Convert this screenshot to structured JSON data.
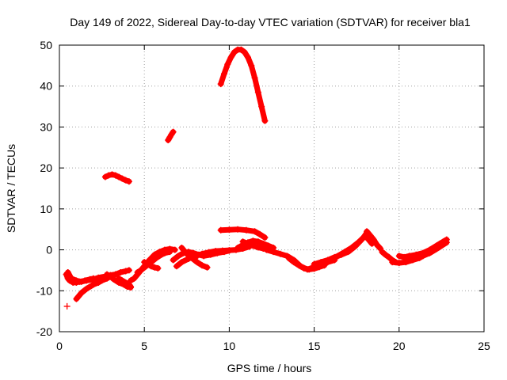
{
  "chart_data": {
    "type": "scatter",
    "title": "Day 149 of 2022, Sidereal Day-to-day VTEC variation (SDTVAR) for receiver bla1",
    "xlabel": "GPS time / hours",
    "ylabel": "SDTVAR / TECUs",
    "xlim": [
      0,
      25
    ],
    "ylim": [
      -20,
      50
    ],
    "xticks": [
      0,
      5,
      10,
      15,
      20,
      25
    ],
    "yticks": [
      -20,
      -10,
      0,
      10,
      20,
      30,
      40,
      50
    ],
    "grid": true,
    "marker": "+",
    "color": "#ff0000",
    "series": [
      {
        "name": "arc-1-low-start",
        "x": [
          0.4,
          0.5,
          0.6,
          0.8,
          1.0,
          1.2,
          1.5,
          1.8,
          2.0
        ],
        "y": [
          -6,
          -7,
          -7.5,
          -8,
          -8,
          -7.8,
          -7.5,
          -7.2,
          -7
        ]
      },
      {
        "name": "arc-2-low",
        "x": [
          0.5,
          0.7,
          1.0,
          1.3,
          1.6,
          2.0,
          2.3,
          2.7,
          3.0,
          3.3
        ],
        "y": [
          -5.5,
          -7,
          -7.5,
          -7.8,
          -7.5,
          -7.2,
          -6.8,
          -6.5,
          -6.2,
          -6
        ]
      },
      {
        "name": "arc-3-low",
        "x": [
          1.0,
          1.3,
          1.6,
          2.0,
          2.3,
          2.5,
          2.8,
          3.0
        ],
        "y": [
          -12,
          -10.5,
          -9.5,
          -8.5,
          -8,
          -7.5,
          -7,
          -6.5
        ]
      },
      {
        "name": "arc-4-low",
        "x": [
          2.8,
          3.0,
          3.2,
          3.5,
          3.8,
          4.0,
          4.2
        ],
        "y": [
          -6,
          -6.5,
          -7.2,
          -8,
          -8.5,
          -9,
          -9.2
        ]
      },
      {
        "name": "arc-5-low",
        "x": [
          3.0,
          3.3,
          3.6,
          3.9,
          4.1
        ],
        "y": [
          -6.5,
          -6,
          -5.5,
          -5.2,
          -5
        ]
      },
      {
        "name": "arc-6-low",
        "x": [
          3.5,
          3.7,
          3.9,
          4.1,
          4.2
        ],
        "y": [
          -7,
          -7.5,
          -8,
          -8.5,
          -9
        ]
      },
      {
        "name": "arc-7-rise",
        "x": [
          4.2,
          4.4,
          4.6,
          4.8,
          5.0,
          5.3,
          5.6,
          5.9,
          6.2,
          6.5,
          6.8
        ],
        "y": [
          -7.5,
          -7,
          -6,
          -5,
          -4,
          -2.5,
          -1.2,
          -0.5,
          0,
          0.2,
          0
        ]
      },
      {
        "name": "arc-8-rise",
        "x": [
          4.6,
          4.8,
          5.1,
          5.4,
          5.7,
          6.0,
          6.2,
          6.5
        ],
        "y": [
          -5.5,
          -5,
          -4,
          -3,
          -2,
          -1.2,
          -0.8,
          -0.5
        ]
      },
      {
        "name": "arc-9-mid",
        "x": [
          5.0,
          5.2,
          5.4,
          5.6,
          5.8
        ],
        "y": [
          -3,
          -3.5,
          -4,
          -4.3,
          -4.5
        ]
      },
      {
        "name": "arc-10-mid",
        "x": [
          6.7,
          7.0,
          7.3,
          7.6,
          7.9,
          8.2,
          8.5,
          8.9,
          9.3,
          9.7,
          10.0
        ],
        "y": [
          -2.5,
          -1.5,
          -0.8,
          -0.5,
          -0.8,
          -1.2,
          -1.5,
          -1.2,
          -0.8,
          -0.5,
          -0.2
        ]
      },
      {
        "name": "arc-11-mid",
        "x": [
          6.9,
          7.2,
          7.6,
          8.0,
          8.4,
          8.8,
          9.2,
          9.6,
          10.0,
          10.4,
          10.8,
          11.2
        ],
        "y": [
          -4,
          -3,
          -2.2,
          -1.5,
          -1,
          -0.6,
          -0.3,
          -0.2,
          -0.1,
          0,
          0.3,
          0.8
        ]
      },
      {
        "name": "arc-12-mid",
        "x": [
          7.5,
          7.8,
          8.1,
          8.4,
          8.7
        ],
        "y": [
          -1,
          -2,
          -3,
          -3.8,
          -4.3
        ]
      },
      {
        "name": "arc-13-mid",
        "x": [
          7.2,
          7.4,
          7.6,
          7.8,
          8.0
        ],
        "y": [
          0.5,
          -0.5,
          -1,
          -1.5,
          -2
        ]
      },
      {
        "name": "arc-14-plateau",
        "x": [
          9.5,
          10.0,
          10.5,
          11.0,
          11.5,
          11.8,
          12.1
        ],
        "y": [
          4.8,
          4.9,
          5.0,
          4.8,
          4.5,
          3.8,
          3.0
        ]
      },
      {
        "name": "arc-15-hump",
        "x": [
          10.5,
          10.8,
          11.1,
          11.4,
          11.7,
          12.0,
          12.3,
          12.6
        ],
        "y": [
          0.5,
          1.2,
          1.8,
          2.2,
          2.0,
          1.5,
          1.0,
          0.5
        ]
      },
      {
        "name": "arc-16-mid",
        "x": [
          10.8,
          11.1,
          11.4,
          11.7,
          12.0,
          12.4
        ],
        "y": [
          2.0,
          1.5,
          1.0,
          0.6,
          0.3,
          0
        ]
      },
      {
        "name": "arc-17-trough",
        "x": [
          12.2,
          12.6,
          13.0,
          13.4,
          13.8,
          14.2,
          14.6,
          15.0,
          15.4,
          15.8,
          16.2
        ],
        "y": [
          0,
          -0.5,
          -1,
          -1.5,
          -2.5,
          -4,
          -4.8,
          -4.2,
          -3.5,
          -3.0,
          -2.5
        ]
      },
      {
        "name": "arc-18-trough",
        "x": [
          13.5,
          13.8,
          14.1,
          14.4,
          14.7,
          15.0,
          15.3,
          15.6
        ],
        "y": [
          -2,
          -3,
          -3.8,
          -4.5,
          -4.8,
          -4.6,
          -4.2,
          -3.8
        ]
      },
      {
        "name": "arc-19-rise",
        "x": [
          15.0,
          15.4,
          15.8,
          16.2,
          16.6,
          17.0,
          17.4,
          17.8,
          18.0,
          18.2,
          18.4
        ],
        "y": [
          -3.5,
          -3,
          -2.5,
          -1.8,
          -1.2,
          -0.5,
          0.8,
          2.5,
          3.5,
          2.5,
          1.5
        ]
      },
      {
        "name": "arc-20-rise",
        "x": [
          16.4,
          16.8,
          17.2,
          17.6,
          17.9,
          18.1
        ],
        "y": [
          -1.5,
          -0.5,
          0.5,
          1.8,
          3.0,
          4.2
        ]
      },
      {
        "name": "arc-21-fall",
        "x": [
          18.1,
          18.3,
          18.5,
          18.7,
          18.9
        ],
        "y": [
          4.5,
          3.5,
          2.5,
          1.2,
          0.3
        ]
      },
      {
        "name": "arc-22-late",
        "x": [
          19.0,
          19.2,
          19.4,
          19.6,
          19.8
        ],
        "y": [
          -0.5,
          -1.2,
          -1.8,
          -2.5,
          -3.0
        ]
      },
      {
        "name": "arc-23-late",
        "x": [
          19.6,
          20.0,
          20.4,
          20.8,
          21.2,
          21.6,
          22.0,
          22.4,
          22.7
        ],
        "y": [
          -3.0,
          -3.2,
          -3.0,
          -2.5,
          -2.0,
          -1.0,
          0.2,
          1.5,
          2.2
        ]
      },
      {
        "name": "arc-24-late",
        "x": [
          20.0,
          20.3,
          20.6,
          21.0,
          21.4,
          21.8,
          22.2,
          22.6,
          22.8
        ],
        "y": [
          -1.5,
          -1.8,
          -1.5,
          -1.2,
          -0.8,
          0,
          1.0,
          2.0,
          2.5
        ]
      },
      {
        "name": "arc-25-late",
        "x": [
          21.0,
          21.4,
          21.8,
          22.2,
          22.5,
          22.8
        ],
        "y": [
          -2.0,
          -1.5,
          -0.8,
          0.2,
          1.0,
          1.8
        ]
      },
      {
        "name": "arc-26-mid-high",
        "x": [
          2.7,
          2.9,
          3.1,
          3.3,
          3.5,
          3.7,
          3.9,
          4.1
        ],
        "y": [
          17.8,
          18.2,
          18.4,
          18.2,
          17.8,
          17.4,
          17.0,
          16.7
        ]
      },
      {
        "name": "arc-27-short-high",
        "x": [
          6.4,
          6.5,
          6.6,
          6.7
        ],
        "y": [
          26.8,
          27.5,
          28.2,
          28.8
        ]
      },
      {
        "name": "arc-28-peak",
        "x": [
          9.5,
          9.7,
          9.9,
          10.1,
          10.3,
          10.5,
          10.7,
          10.9,
          11.1,
          11.3,
          11.5,
          11.7,
          11.9,
          12.1
        ],
        "y": [
          40.5,
          43.0,
          45.3,
          47.0,
          48.3,
          48.9,
          48.9,
          48.3,
          47.0,
          45.0,
          42.0,
          38.5,
          35.0,
          31.5
        ]
      }
    ],
    "isolated_points": [
      {
        "x": 0.45,
        "y": -13.8
      }
    ]
  }
}
